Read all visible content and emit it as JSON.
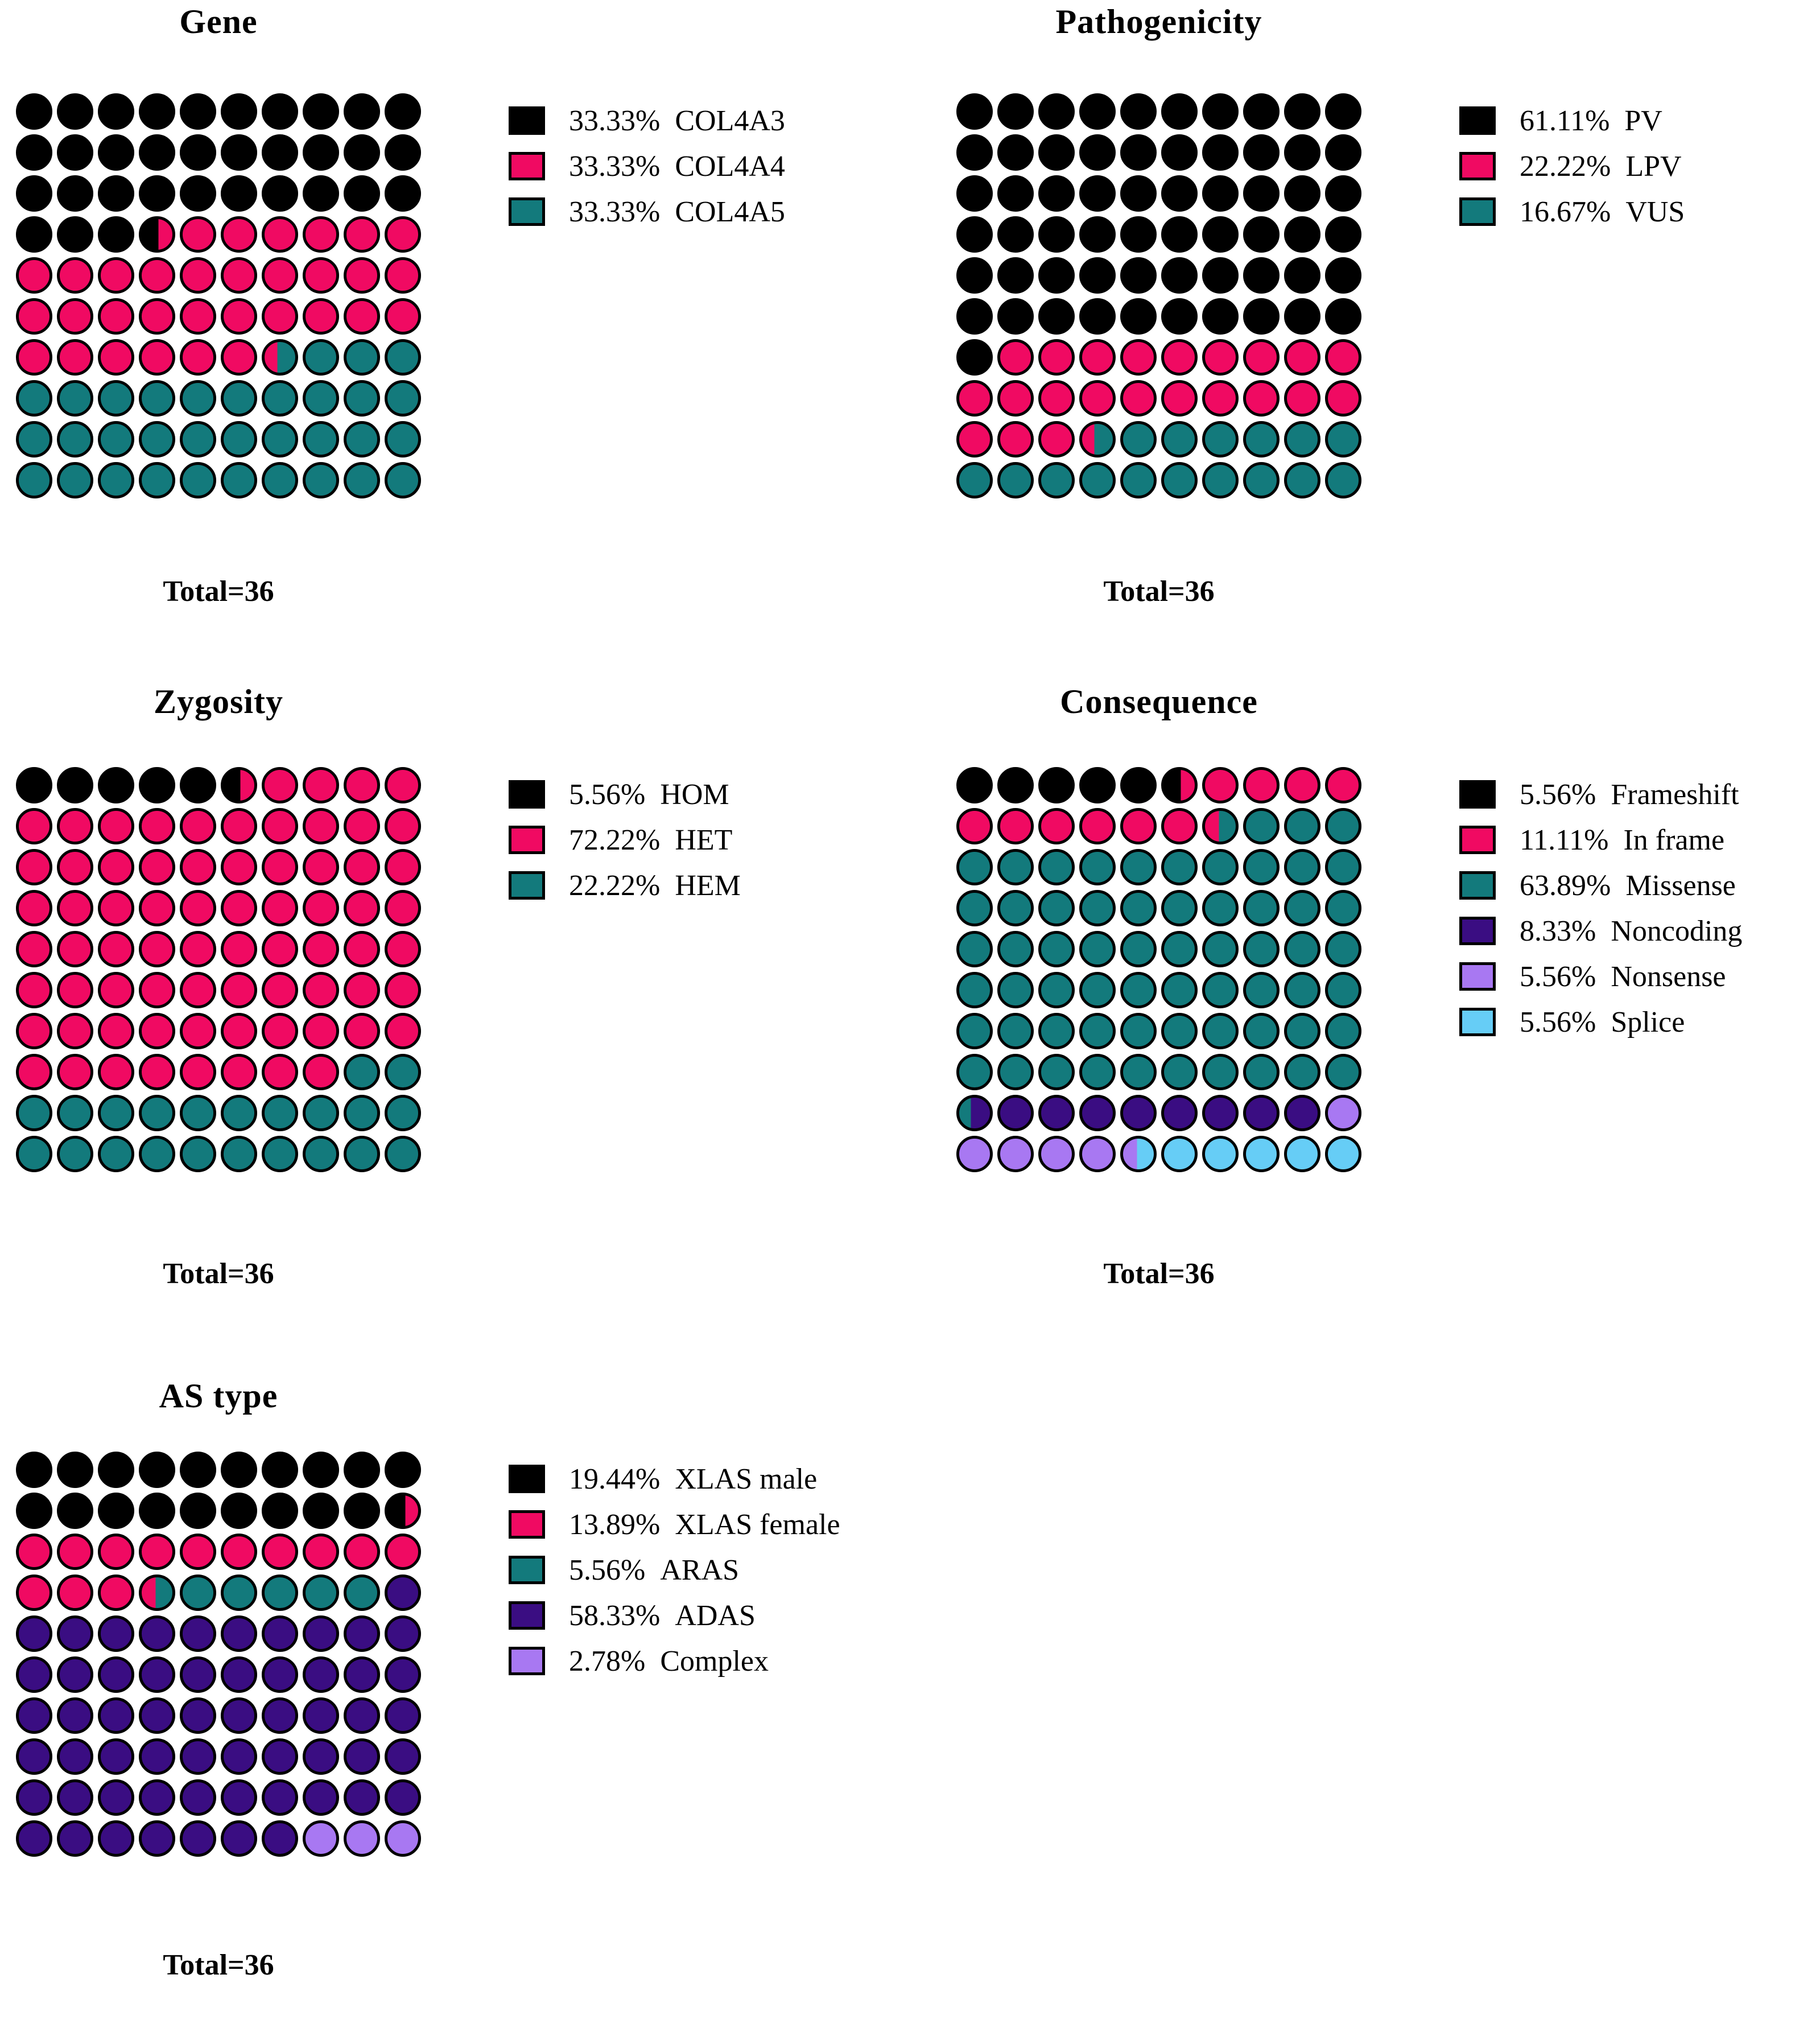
{
  "palette": {
    "black": "#000000",
    "pink": "#F00A62",
    "teal": "#137A7C",
    "purple": "#3A0D82",
    "lavender": "#A878F2",
    "skyblue": "#66CDF6"
  },
  "chart_data": [
    {
      "type": "waffle",
      "title": "Gene",
      "total_label": "Total=36",
      "total_n": 36,
      "grid": {
        "rows": 10,
        "cols": 10,
        "percent_per_dot": 1
      },
      "legend_position": "right",
      "categories": [
        "COL4A3",
        "COL4A4",
        "COL4A5"
      ],
      "values_percent": [
        33.33,
        33.33,
        33.33
      ],
      "legend_percent_labels": [
        "33.33%",
        "33.33%",
        "33.33%"
      ],
      "colors": [
        "black",
        "pink",
        "teal"
      ],
      "dots_rle": [
        "black*33",
        "black|pink|55",
        "pink*32",
        "pink|teal|42",
        "teal*33"
      ]
    },
    {
      "type": "waffle",
      "title": "Pathogenicity",
      "total_label": "Total=36",
      "total_n": 36,
      "grid": {
        "rows": 10,
        "cols": 10,
        "percent_per_dot": 1
      },
      "legend_position": "right",
      "categories": [
        "PV",
        "LPV",
        "VUS"
      ],
      "values_percent": [
        61.11,
        22.22,
        16.67
      ],
      "legend_percent_labels": [
        "61.11%",
        "22.22%",
        "16.67%"
      ],
      "colors": [
        "black",
        "pink",
        "teal"
      ],
      "dots_rle": [
        "black*61",
        "pink*22",
        "pink|teal|40",
        "teal*16"
      ]
    },
    {
      "type": "waffle",
      "title": "Zygosity",
      "total_label": "Total=36",
      "total_n": 36,
      "grid": {
        "rows": 10,
        "cols": 10,
        "percent_per_dot": 1
      },
      "legend_position": "right",
      "categories": [
        "HOM",
        "HET",
        "HEM"
      ],
      "values_percent": [
        5.56,
        72.22,
        22.22
      ],
      "legend_percent_labels": [
        "5.56%",
        "72.22%",
        "22.22%"
      ],
      "colors": [
        "black",
        "pink",
        "teal"
      ],
      "dots_rle": [
        "black*5",
        "black|pink|55",
        "pink*72",
        "teal*22"
      ]
    },
    {
      "type": "waffle",
      "title": "Consequence",
      "total_label": "Total=36",
      "total_n": 36,
      "grid": {
        "rows": 10,
        "cols": 10,
        "percent_per_dot": 1
      },
      "legend_position": "right",
      "categories": [
        "Frameshift",
        "In frame",
        "Missense",
        "Noncoding",
        "Nonsense",
        "Splice"
      ],
      "values_percent": [
        5.56,
        11.11,
        63.89,
        8.33,
        5.56,
        5.56
      ],
      "legend_percent_labels": [
        "5.56%",
        "11.11%",
        "63.89%",
        "8.33%",
        "5.56%",
        "5.56%"
      ],
      "colors": [
        "black",
        "pink",
        "teal",
        "purple",
        "lavender",
        "skyblue"
      ],
      "dots_rle": [
        "black*5",
        "black|pink|55",
        "pink*10",
        "pink|teal|45",
        "teal*63",
        "teal|purple|38",
        "purple*8",
        "lavender*5",
        "lavender|skyblue|45",
        "skyblue*5"
      ]
    },
    {
      "type": "waffle",
      "title": "AS type",
      "total_label": "Total=36",
      "total_n": 36,
      "grid": {
        "rows": 10,
        "cols": 10,
        "percent_per_dot": 1
      },
      "legend_position": "right",
      "categories": [
        "XLAS male",
        "XLAS female",
        "ARAS",
        "ADAS",
        "Complex"
      ],
      "values_percent": [
        19.44,
        13.89,
        5.56,
        58.33,
        2.78
      ],
      "legend_percent_labels": [
        "19.44%",
        "13.89%",
        "5.56%",
        "58.33%",
        "2.78%"
      ],
      "colors": [
        "black",
        "pink",
        "teal",
        "purple",
        "lavender"
      ],
      "dots_rle": [
        "black*19",
        "black|pink|58",
        "pink*13",
        "pink|teal|45",
        "teal*5",
        "purple*58",
        "lavender*3"
      ]
    }
  ]
}
